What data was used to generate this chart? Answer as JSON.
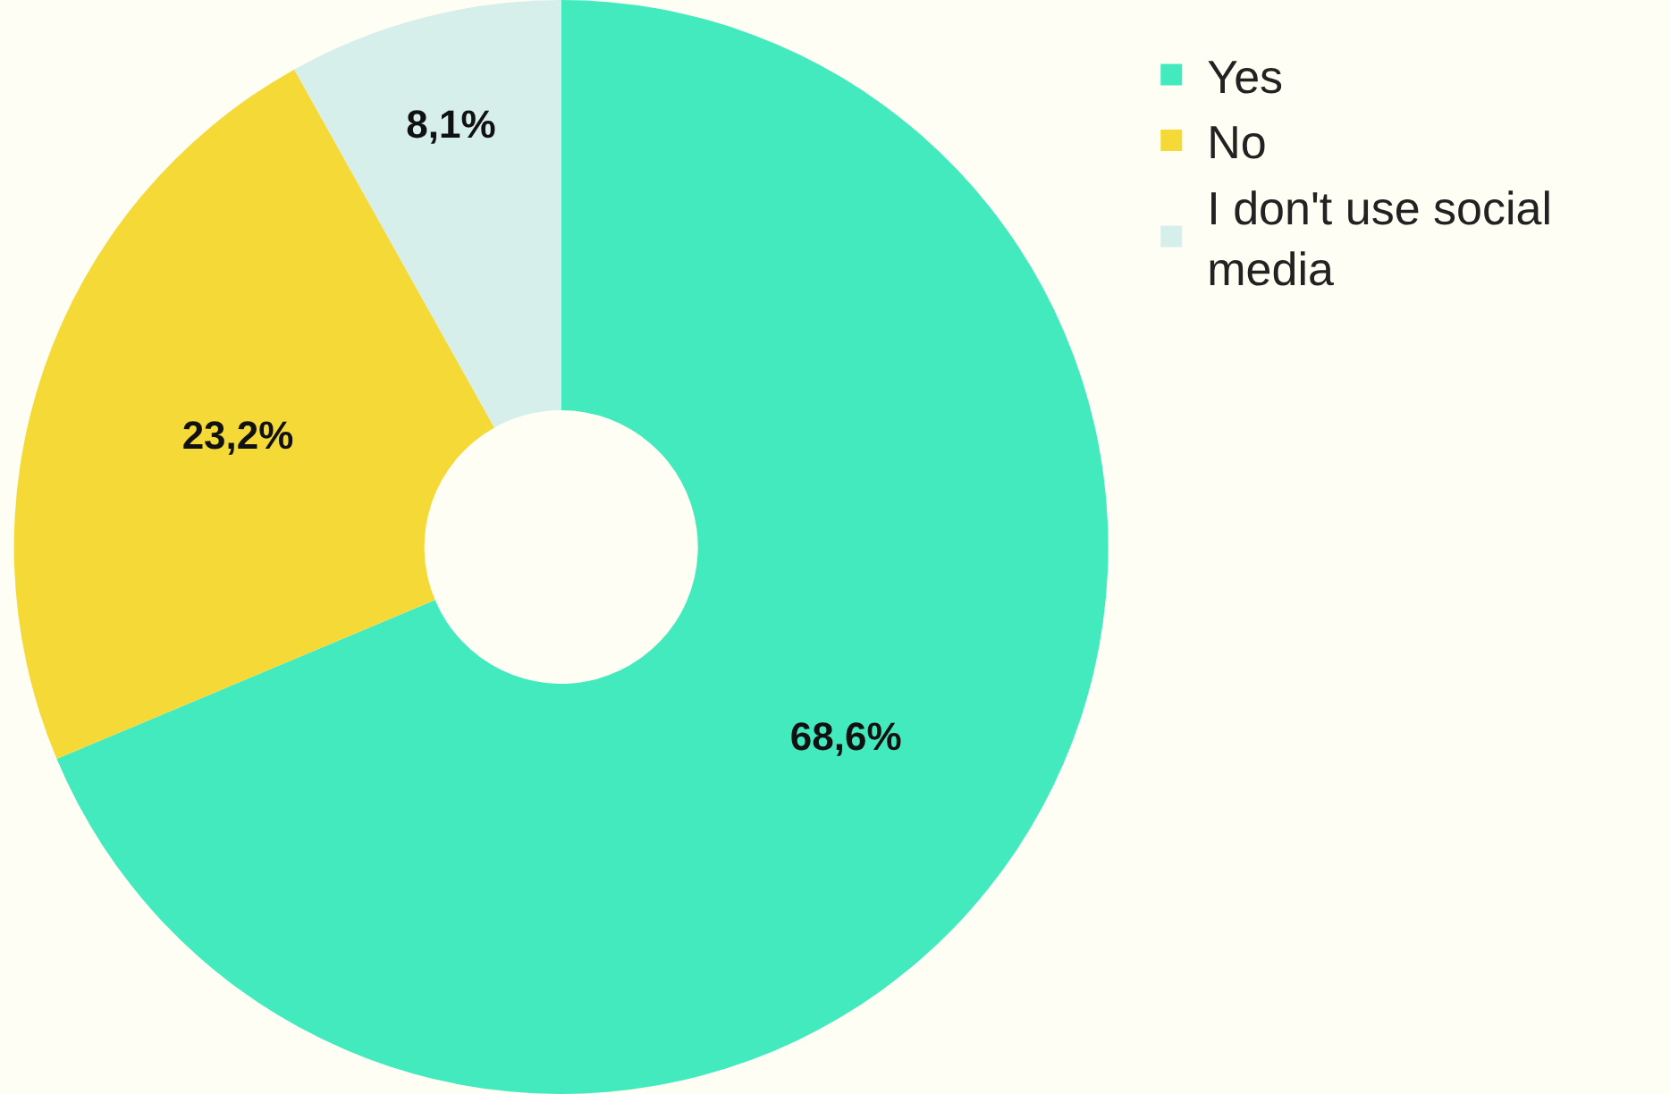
{
  "chart_data": {
    "type": "donut",
    "categories": [
      "Yes",
      "No",
      "I don't use social media"
    ],
    "values": [
      68.6,
      23.2,
      8.1
    ],
    "colors": [
      "#43eabd",
      "#f5da37",
      "#d6efeb"
    ],
    "value_labels": [
      "68,6%",
      "23,2%",
      "8,1%"
    ],
    "legend": "top right"
  }
}
